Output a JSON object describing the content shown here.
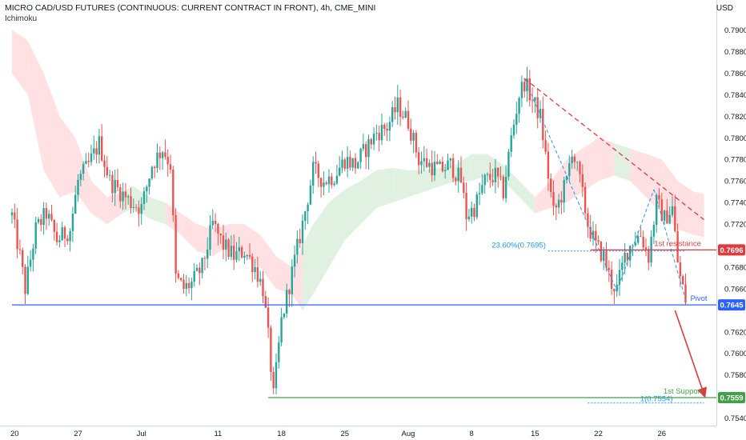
{
  "header": {
    "title": "MICRO CAD/USD FUTURES (CONTINUOUS: CURRENT CONTRACT IN FRONT), 4h, CME_MINI",
    "indicator": "Ichimoku"
  },
  "currency": "USD",
  "colors": {
    "up": "#26a69a",
    "down": "#ef5350",
    "pivot": "#2962ff",
    "resistance": "#e03a3e",
    "support": "#43a047",
    "fib": "#2196f3",
    "cloud_bull": "#c8e6c9",
    "cloud_bear": "#ffcdd2"
  },
  "chart_data": {
    "type": "candlestick",
    "y_axis": {
      "ylim": [
        0.7533,
        0.7916
      ],
      "ticks": [
        "0.7900",
        "0.7880",
        "0.7860",
        "0.7840",
        "0.7820",
        "0.7800",
        "0.7780",
        "0.7760",
        "0.7740",
        "0.7720",
        "0.7700",
        "0.7680",
        "0.7660",
        "0.7640",
        "0.7620",
        "0.7600",
        "0.7580",
        "0.7560",
        "0.7540"
      ]
    },
    "x_axis": {
      "ticks": [
        {
          "label": "20",
          "i": 1
        },
        {
          "label": "27",
          "i": 25
        },
        {
          "label": "Jul",
          "i": 49
        },
        {
          "label": "11",
          "i": 78
        },
        {
          "label": "18",
          "i": 102
        },
        {
          "label": "25",
          "i": 126
        },
        {
          "label": "Aug",
          "i": 150
        },
        {
          "label": "8",
          "i": 174
        },
        {
          "label": "15",
          "i": 198
        },
        {
          "label": "22",
          "i": 222
        },
        {
          "label": "26",
          "i": 246
        }
      ],
      "n_bars": 261
    },
    "anchors": [
      [
        0,
        0.7728
      ],
      [
        3,
        0.769
      ],
      [
        5,
        0.766
      ],
      [
        9,
        0.7715
      ],
      [
        13,
        0.773
      ],
      [
        17,
        0.7705
      ],
      [
        22,
        0.7715
      ],
      [
        25,
        0.776
      ],
      [
        29,
        0.7775
      ],
      [
        33,
        0.7795
      ],
      [
        37,
        0.776
      ],
      [
        41,
        0.775
      ],
      [
        45,
        0.774
      ],
      [
        49,
        0.7735
      ],
      [
        53,
        0.7775
      ],
      [
        57,
        0.779
      ],
      [
        60,
        0.7775
      ],
      [
        62,
        0.767
      ],
      [
        65,
        0.766
      ],
      [
        68,
        0.7665
      ],
      [
        72,
        0.768
      ],
      [
        76,
        0.772
      ],
      [
        80,
        0.77
      ],
      [
        84,
        0.769
      ],
      [
        88,
        0.7695
      ],
      [
        92,
        0.768
      ],
      [
        95,
        0.766
      ],
      [
        97,
        0.7615
      ],
      [
        99,
        0.756
      ],
      [
        102,
        0.763
      ],
      [
        106,
        0.7675
      ],
      [
        110,
        0.772
      ],
      [
        114,
        0.777
      ],
      [
        118,
        0.776
      ],
      [
        122,
        0.7765
      ],
      [
        126,
        0.778
      ],
      [
        130,
        0.7775
      ],
      [
        134,
        0.779
      ],
      [
        138,
        0.7805
      ],
      [
        142,
        0.781
      ],
      [
        146,
        0.783
      ],
      [
        150,
        0.7815
      ],
      [
        154,
        0.778
      ],
      [
        158,
        0.7775
      ],
      [
        162,
        0.777
      ],
      [
        166,
        0.7775
      ],
      [
        170,
        0.776
      ],
      [
        172,
        0.7728
      ],
      [
        175,
        0.7735
      ],
      [
        179,
        0.776
      ],
      [
        183,
        0.7765
      ],
      [
        186,
        0.775
      ],
      [
        189,
        0.78
      ],
      [
        192,
        0.784
      ],
      [
        194,
        0.7852
      ],
      [
        197,
        0.7835
      ],
      [
        200,
        0.782
      ],
      [
        203,
        0.7765
      ],
      [
        205,
        0.773
      ],
      [
        207,
        0.774
      ],
      [
        210,
        0.776
      ],
      [
        212,
        0.779
      ],
      [
        215,
        0.776
      ],
      [
        218,
        0.772
      ],
      [
        221,
        0.77
      ],
      [
        224,
        0.769
      ],
      [
        227,
        0.7665
      ],
      [
        229,
        0.766
      ],
      [
        232,
        0.769
      ],
      [
        235,
        0.7705
      ],
      [
        238,
        0.771
      ],
      [
        241,
        0.769
      ],
      [
        244,
        0.774
      ],
      [
        247,
        0.7725
      ],
      [
        250,
        0.7735
      ],
      [
        252,
        0.7685
      ],
      [
        253,
        0.767
      ],
      [
        255,
        0.765
      ]
    ],
    "ichimoku_cloud": [
      [
        0,
        0.79,
        0.786
      ],
      [
        6,
        0.789,
        0.784
      ],
      [
        12,
        0.786,
        0.777
      ],
      [
        18,
        0.782,
        0.7745
      ],
      [
        24,
        0.78,
        0.775
      ],
      [
        30,
        0.776,
        0.773
      ],
      [
        36,
        0.7745,
        0.772
      ],
      [
        42,
        0.775,
        0.773
      ],
      [
        46,
        0.7755,
        0.7735
      ],
      [
        52,
        0.7745,
        0.7725
      ],
      [
        58,
        0.774,
        0.772
      ],
      [
        64,
        0.773,
        0.771
      ],
      [
        70,
        0.772,
        0.7695
      ],
      [
        76,
        0.7715,
        0.769
      ],
      [
        82,
        0.772,
        0.77
      ],
      [
        88,
        0.772,
        0.769
      ],
      [
        94,
        0.771,
        0.768
      ],
      [
        100,
        0.769,
        0.766
      ],
      [
        106,
        0.768,
        0.7655
      ],
      [
        110,
        0.77,
        0.764
      ],
      [
        114,
        0.772,
        0.7655
      ],
      [
        120,
        0.774,
        0.768
      ],
      [
        126,
        0.7752,
        0.7705
      ],
      [
        132,
        0.776,
        0.772
      ],
      [
        138,
        0.777,
        0.7735
      ],
      [
        144,
        0.7772,
        0.774
      ],
      [
        150,
        0.777,
        0.7745
      ],
      [
        156,
        0.777,
        0.775
      ],
      [
        162,
        0.7772,
        0.7755
      ],
      [
        168,
        0.7775,
        0.776
      ],
      [
        174,
        0.7785,
        0.776
      ],
      [
        180,
        0.7785,
        0.7765
      ],
      [
        186,
        0.7775,
        0.776
      ],
      [
        192,
        0.776,
        0.7745
      ],
      [
        198,
        0.7745,
        0.773
      ],
      [
        204,
        0.776,
        0.7735
      ],
      [
        210,
        0.778,
        0.774
      ],
      [
        216,
        0.779,
        0.775
      ],
      [
        222,
        0.78,
        0.776
      ],
      [
        228,
        0.7795,
        0.7765
      ],
      [
        234,
        0.779,
        0.776
      ],
      [
        240,
        0.7785,
        0.7745
      ],
      [
        246,
        0.778,
        0.773
      ],
      [
        252,
        0.776,
        0.7715
      ],
      [
        258,
        0.775,
        0.771
      ],
      [
        262,
        0.7748,
        0.7708
      ]
    ],
    "levels": {
      "resistance": {
        "label": "1st resistance",
        "value": 0.7696,
        "price_tag": "0.7696"
      },
      "pivot": {
        "label": "Pivot",
        "value": 0.7645,
        "price_tag": "0.7645"
      },
      "support": {
        "label": "1st Support",
        "value": 0.7559,
        "price_tag": "0.7559"
      }
    },
    "fib_labels": {
      "fib_23": "23.60%(0.7695)",
      "fib_1": "1(0.7554)"
    },
    "trend_lines": {
      "downtrend": {
        "from": [
          194,
          0.7855
        ],
        "to": [
          262,
          0.7724
        ]
      },
      "fib_leg_1": {
        "from": [
          194,
          0.7855
        ],
        "to": [
          229,
          0.7658
        ]
      },
      "fib_leg_2": {
        "from": [
          229,
          0.7658
        ],
        "to": [
          243,
          0.7752
        ]
      },
      "fib_leg_3": {
        "from": [
          243,
          0.7752
        ],
        "to": [
          255,
          0.765
        ]
      },
      "fib_hline_23": {
        "from": [
          203,
          0.7695
        ],
        "to": [
          255,
          0.7695
        ]
      },
      "fib_hline_1": {
        "from": [
          218,
          0.7554
        ],
        "to": [
          262,
          0.7554
        ]
      },
      "projection_arrow": {
        "from": [
          251,
          0.764
        ],
        "to": [
          262,
          0.7562
        ]
      }
    }
  }
}
